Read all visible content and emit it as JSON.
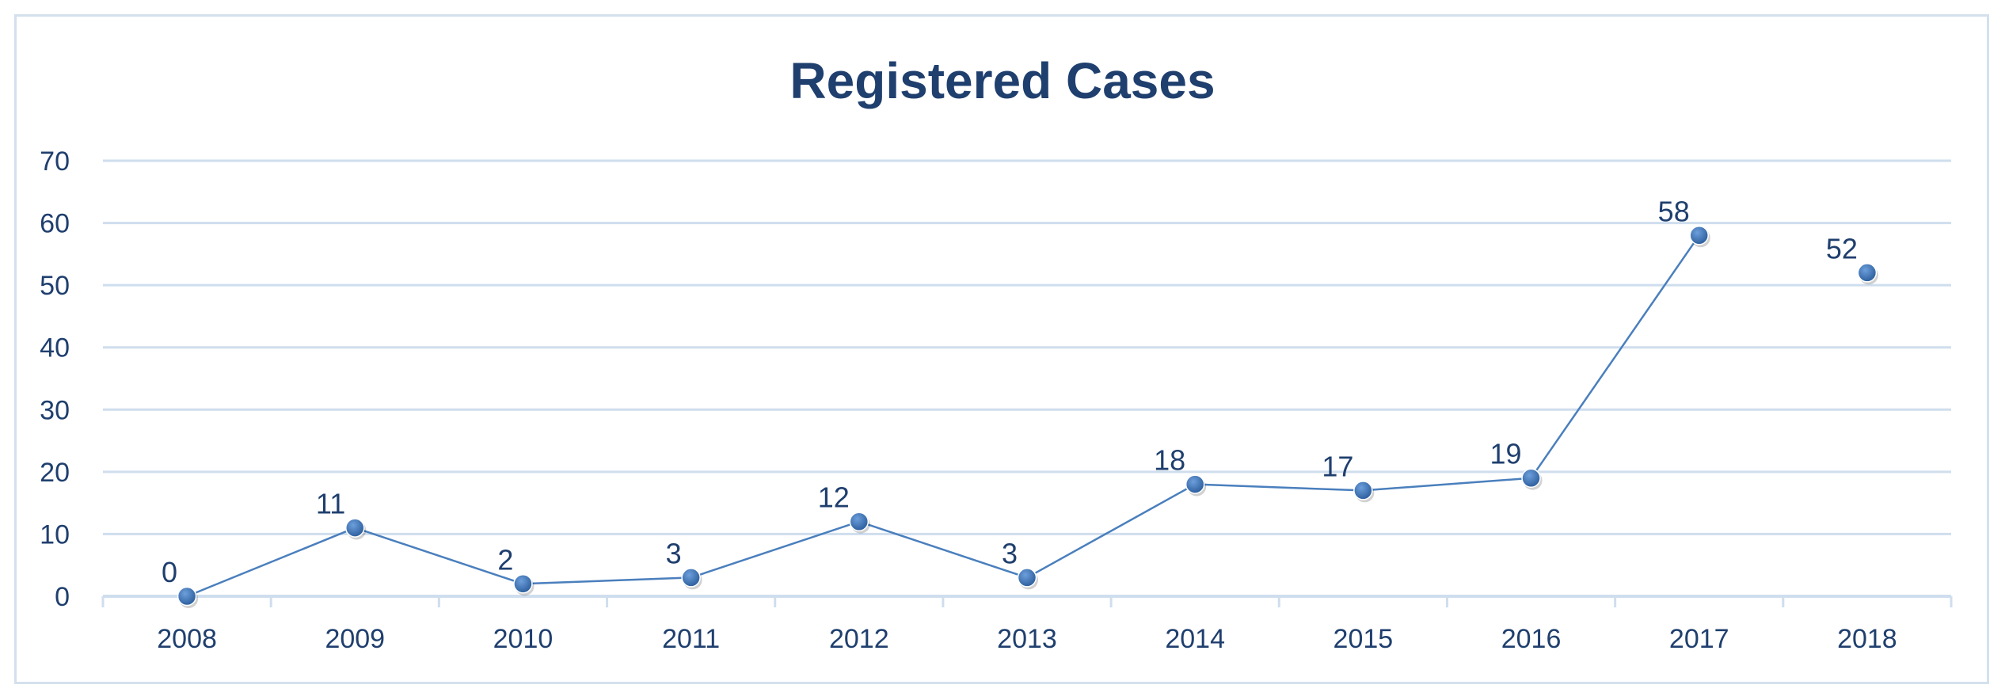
{
  "chart_data": {
    "type": "line",
    "title": "Registered Cases",
    "xlabel": "",
    "ylabel": "",
    "categories": [
      "2008",
      "2009",
      "2010",
      "2011",
      "2012",
      "2013",
      "2014",
      "2015",
      "2016",
      "2017",
      "2018"
    ],
    "series": [
      {
        "values": [
          0,
          11,
          2,
          3,
          12,
          3,
          18,
          17,
          19,
          58,
          52
        ],
        "connected": [
          true,
          true,
          true,
          true,
          true,
          true,
          true,
          true,
          true,
          true,
          false
        ]
      }
    ],
    "data_labels": [
      "0",
      "11",
      "2",
      "3",
      "12",
      "3",
      "18",
      "17",
      "19",
      "58",
      "52"
    ],
    "ylim": [
      0,
      70
    ],
    "yticks": [
      "0",
      "10",
      "20",
      "30",
      "40",
      "50",
      "60",
      "70"
    ],
    "grid": true,
    "legend": "none",
    "colors": {
      "line": "#4a7fbd",
      "marker": "#3a70b2",
      "grid": "#cfdeee",
      "text": "#1f3f6e"
    }
  }
}
